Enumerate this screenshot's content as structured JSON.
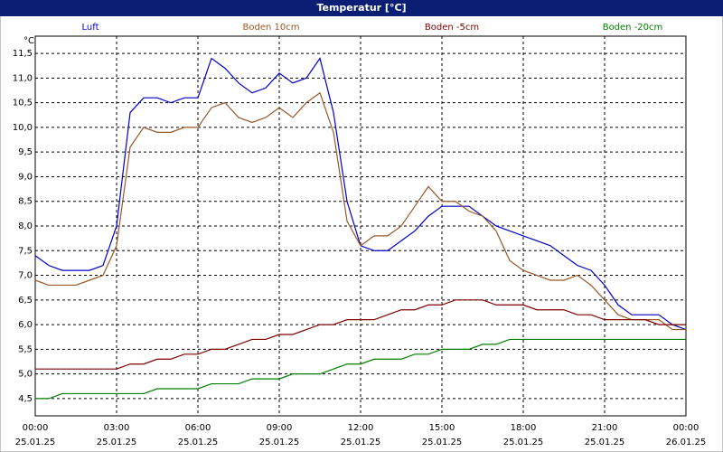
{
  "chart_data": {
    "type": "line",
    "title": "Temperatur [°C]",
    "y_label": "°C",
    "x": [
      0,
      0.5,
      1,
      1.5,
      2,
      2.5,
      3,
      3.5,
      4,
      4.5,
      5,
      5.5,
      6,
      6.5,
      7,
      7.5,
      8,
      8.5,
      9,
      9.5,
      10,
      10.5,
      11,
      11.5,
      12,
      12.5,
      13,
      13.5,
      14,
      14.5,
      15,
      15.5,
      16,
      16.5,
      17,
      17.5,
      18,
      18.5,
      19,
      19.5,
      20,
      20.5,
      21,
      21.5,
      22,
      22.5,
      23,
      23.5,
      24
    ],
    "series": [
      {
        "name": "Luft",
        "color": "#0000cc",
        "values": [
          7.4,
          7.2,
          7.1,
          7.1,
          7.1,
          7.2,
          8.0,
          10.3,
          10.6,
          10.6,
          10.5,
          10.6,
          10.6,
          11.4,
          11.2,
          10.9,
          10.7,
          10.8,
          11.1,
          10.9,
          11.0,
          11.4,
          10.3,
          8.5,
          7.6,
          7.5,
          7.5,
          7.7,
          7.9,
          8.2,
          8.4,
          8.4,
          8.4,
          8.2,
          8.0,
          7.9,
          7.8,
          7.7,
          7.6,
          7.4,
          7.2,
          7.1,
          6.8,
          6.4,
          6.2,
          6.2,
          6.2,
          6.0,
          5.9
        ]
      },
      {
        "name": "Boden 10cm",
        "color": "#99582a",
        "values": [
          6.9,
          6.8,
          6.8,
          6.8,
          6.9,
          7.0,
          7.6,
          9.6,
          10.0,
          9.9,
          9.9,
          10.0,
          10.0,
          10.4,
          10.5,
          10.2,
          10.1,
          10.2,
          10.4,
          10.2,
          10.5,
          10.7,
          9.9,
          8.1,
          7.6,
          7.8,
          7.8,
          8.0,
          8.4,
          8.8,
          8.5,
          8.5,
          8.3,
          8.2,
          7.9,
          7.3,
          7.1,
          7.0,
          6.9,
          6.9,
          7.0,
          6.8,
          6.5,
          6.2,
          6.1,
          6.1,
          6.1,
          5.9,
          5.9
        ]
      },
      {
        "name": "Boden -5cm",
        "color": "#800000",
        "values": [
          5.1,
          5.1,
          5.1,
          5.1,
          5.1,
          5.1,
          5.1,
          5.2,
          5.2,
          5.3,
          5.3,
          5.4,
          5.4,
          5.5,
          5.5,
          5.6,
          5.7,
          5.7,
          5.8,
          5.8,
          5.9,
          6.0,
          6.0,
          6.1,
          6.1,
          6.1,
          6.2,
          6.3,
          6.3,
          6.4,
          6.4,
          6.5,
          6.5,
          6.5,
          6.4,
          6.4,
          6.4,
          6.3,
          6.3,
          6.3,
          6.2,
          6.2,
          6.1,
          6.1,
          6.1,
          6.1,
          6.0,
          6.0,
          6.0
        ]
      },
      {
        "name": "Boden -20cm",
        "color": "#008000",
        "values": [
          4.5,
          4.5,
          4.6,
          4.6,
          4.6,
          4.6,
          4.6,
          4.6,
          4.6,
          4.7,
          4.7,
          4.7,
          4.7,
          4.8,
          4.8,
          4.8,
          4.9,
          4.9,
          4.9,
          5.0,
          5.0,
          5.0,
          5.1,
          5.2,
          5.2,
          5.3,
          5.3,
          5.3,
          5.4,
          5.4,
          5.5,
          5.5,
          5.5,
          5.6,
          5.6,
          5.7,
          5.7,
          5.7,
          5.7,
          5.7,
          5.7,
          5.7,
          5.7,
          5.7,
          5.7,
          5.7,
          5.7,
          5.7,
          5.7
        ]
      }
    ],
    "xlim": [
      0,
      24
    ],
    "ylim": [
      4.15,
      11.85
    ],
    "xticks": [
      {
        "value": 0,
        "label": "00:00"
      },
      {
        "value": 3,
        "label": "03:00"
      },
      {
        "value": 6,
        "label": "06:00"
      },
      {
        "value": 9,
        "label": "09:00"
      },
      {
        "value": 12,
        "label": "12:00"
      },
      {
        "value": 15,
        "label": "15:00"
      },
      {
        "value": 18,
        "label": "18:00"
      },
      {
        "value": 21,
        "label": "21:00"
      },
      {
        "value": 24,
        "label": "00:00"
      }
    ],
    "xtick_dates": [
      "25.01.25",
      "25.01.25",
      "25.01.25",
      "25.01.25",
      "25.01.25",
      "25.01.25",
      "25.01.25",
      "25.01.25",
      "26.01.25"
    ],
    "yticks": [
      {
        "value": 4.5,
        "label": "4,5"
      },
      {
        "value": 5,
        "label": "5,0"
      },
      {
        "value": 5.5,
        "label": "5,5"
      },
      {
        "value": 6,
        "label": "6,0"
      },
      {
        "value": 6.5,
        "label": "6,5"
      },
      {
        "value": 7,
        "label": "7,0"
      },
      {
        "value": 7.5,
        "label": "7,5"
      },
      {
        "value": 8,
        "label": "8,0"
      },
      {
        "value": 8.5,
        "label": "8,5"
      },
      {
        "value": 9,
        "label": "9,0"
      },
      {
        "value": 9.5,
        "label": "9,5"
      },
      {
        "value": 10,
        "label": "10,0"
      },
      {
        "value": 10.5,
        "label": "10,5"
      },
      {
        "value": 11,
        "label": "11,0"
      },
      {
        "value": 11.5,
        "label": "11,5"
      }
    ],
    "grid": true
  }
}
